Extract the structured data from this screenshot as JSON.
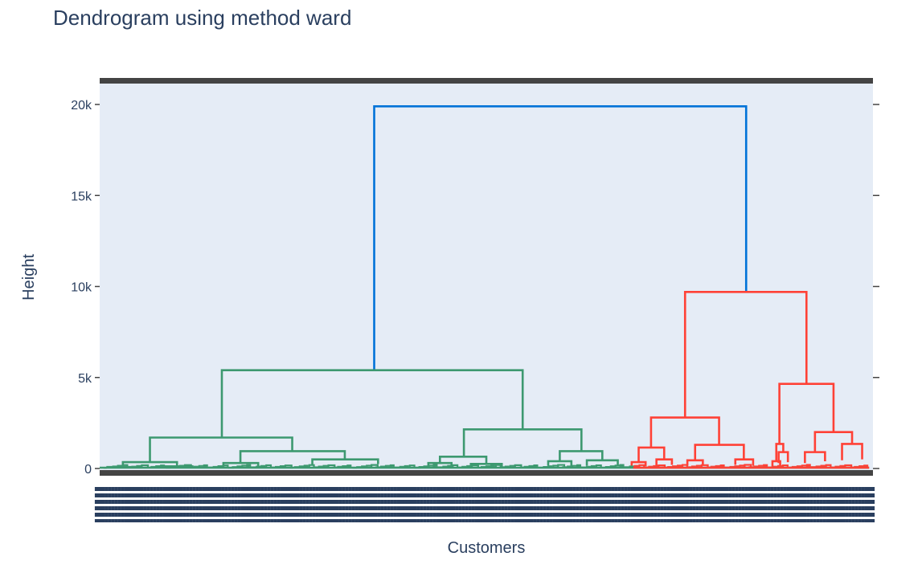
{
  "chart_data": {
    "type": "dendrogram",
    "title": "Dendrogram using method ward",
    "xlabel": "Customers",
    "ylabel": "Height",
    "ylim": [
      -600,
      21000
    ],
    "yticks": [
      {
        "value": 0,
        "label": "0"
      },
      {
        "value": 5000,
        "label": "5k"
      },
      {
        "value": 10000,
        "label": "10k"
      },
      {
        "value": 15000,
        "label": "15k"
      },
      {
        "value": 20000,
        "label": "20k"
      }
    ],
    "colors": {
      "plot_bg": "#E5ECF6",
      "root": "#0072D8",
      "cluster_left": "#3D9970",
      "cluster_right": "#FF4136",
      "frame": "#444444",
      "text": "#2a3f5f",
      "leaf_labels": "#2a3f5f"
    },
    "merges": [
      {
        "cluster": "root",
        "left": 0.355,
        "right": 0.836,
        "height": 19900,
        "left_base": 5400,
        "right_base": 9700
      },
      {
        "cluster": "left",
        "left": 0.158,
        "right": 0.547,
        "height": 5400,
        "left_base": 1700,
        "right_base": 2150
      },
      {
        "cluster": "right",
        "left": 0.757,
        "right": 0.914,
        "height": 9700,
        "left_base": 2800,
        "right_base": 4650
      },
      {
        "cluster": "left",
        "left": 0.065,
        "right": 0.249,
        "height": 1700,
        "left_base": 350,
        "right_base": 950
      },
      {
        "cluster": "left",
        "left": 0.471,
        "right": 0.623,
        "height": 2150,
        "left_base": 650,
        "right_base": 950
      },
      {
        "cluster": "right",
        "left": 0.713,
        "right": 0.801,
        "height": 2800,
        "left_base": 1150,
        "right_base": 1300
      },
      {
        "cluster": "right",
        "left": 0.879,
        "right": 0.949,
        "height": 4650,
        "left_base": 1350,
        "right_base": 2000
      },
      {
        "cluster": "left",
        "left": 0.03,
        "right": 0.1,
        "height": 350,
        "left_base": 80,
        "right_base": 120
      },
      {
        "cluster": "left",
        "left": 0.182,
        "right": 0.317,
        "height": 950,
        "left_base": 300,
        "right_base": 500
      },
      {
        "cluster": "left",
        "left": 0.44,
        "right": 0.5,
        "height": 650,
        "left_base": 300,
        "right_base": 250
      },
      {
        "cluster": "left",
        "left": 0.595,
        "right": 0.65,
        "height": 950,
        "left_base": 400,
        "right_base": 450
      },
      {
        "cluster": "right",
        "left": 0.697,
        "right": 0.73,
        "height": 1150,
        "left_base": 350,
        "right_base": 500
      },
      {
        "cluster": "right",
        "left": 0.77,
        "right": 0.833,
        "height": 1300,
        "left_base": 450,
        "right_base": 500
      },
      {
        "cluster": "right",
        "left": 0.875,
        "right": 0.884,
        "height": 1350,
        "left_base": 400,
        "right_base": 900
      },
      {
        "cluster": "right",
        "left": 0.925,
        "right": 0.973,
        "height": 2000,
        "left_base": 900,
        "right_base": 1350
      },
      {
        "cluster": "left",
        "left": 0.01,
        "right": 0.045,
        "height": 80,
        "left_base": 0,
        "right_base": 0
      },
      {
        "cluster": "left",
        "left": 0.08,
        "right": 0.12,
        "height": 120,
        "left_base": 0,
        "right_base": 0
      },
      {
        "cluster": "left",
        "left": 0.16,
        "right": 0.205,
        "height": 300,
        "left_base": 100,
        "right_base": 150
      },
      {
        "cluster": "left",
        "left": 0.275,
        "right": 0.36,
        "height": 500,
        "left_base": 200,
        "right_base": 250
      },
      {
        "cluster": "left",
        "left": 0.425,
        "right": 0.455,
        "height": 300,
        "left_base": 100,
        "right_base": 120
      },
      {
        "cluster": "left",
        "left": 0.48,
        "right": 0.52,
        "height": 250,
        "left_base": 80,
        "right_base": 100
      },
      {
        "cluster": "left",
        "left": 0.58,
        "right": 0.61,
        "height": 400,
        "left_base": 150,
        "right_base": 150
      },
      {
        "cluster": "left",
        "left": 0.63,
        "right": 0.67,
        "height": 450,
        "left_base": 150,
        "right_base": 200
      },
      {
        "cluster": "right",
        "left": 0.688,
        "right": 0.706,
        "height": 350,
        "left_base": 100,
        "right_base": 120
      },
      {
        "cluster": "right",
        "left": 0.72,
        "right": 0.74,
        "height": 500,
        "left_base": 150,
        "right_base": 200
      },
      {
        "cluster": "right",
        "left": 0.76,
        "right": 0.78,
        "height": 450,
        "left_base": 150,
        "right_base": 150
      },
      {
        "cluster": "right",
        "left": 0.822,
        "right": 0.845,
        "height": 500,
        "left_base": 200,
        "right_base": 150
      },
      {
        "cluster": "right",
        "left": 0.87,
        "right": 0.88,
        "height": 400,
        "left_base": 100,
        "right_base": 150
      },
      {
        "cluster": "right",
        "left": 0.878,
        "right": 0.89,
        "height": 900,
        "left_base": 300,
        "right_base": 350
      },
      {
        "cluster": "right",
        "left": 0.912,
        "right": 0.938,
        "height": 900,
        "left_base": 300,
        "right_base": 400
      },
      {
        "cluster": "right",
        "left": 0.96,
        "right": 0.986,
        "height": 1350,
        "left_base": 450,
        "right_base": 500
      }
    ]
  }
}
